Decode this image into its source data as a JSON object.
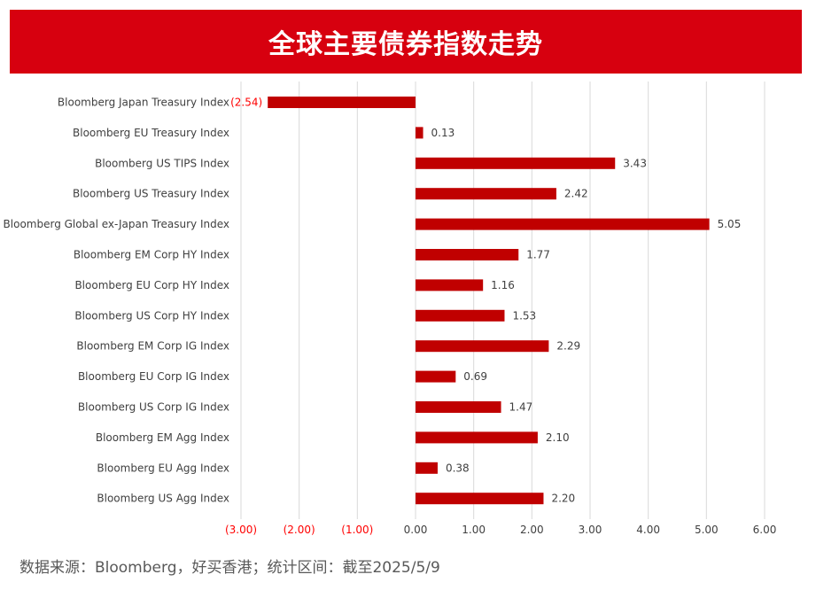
{
  "banner": {
    "title": "全球主要债券指数走势"
  },
  "source": "数据来源：Bloomberg，好买香港；统计区间：截至2025/5/9",
  "colors": {
    "bar": "#c00000",
    "banner": "#d7000f",
    "negative_label": "#ff0000",
    "grid": "#d9d9d9",
    "text": "#404040"
  },
  "chart_data": {
    "type": "bar",
    "orientation": "horizontal",
    "title": "全球主要债券指数走势",
    "categories": [
      "Bloomberg Japan Treasury Index",
      "Bloomberg EU Treasury Index",
      "Bloomberg US TIPS Index",
      "Bloomberg US Treasury Index",
      "Bloomberg Global ex-Japan Treasury Index",
      "Bloomberg EM Corp HY Index",
      "Bloomberg EU Corp HY Index",
      "Bloomberg US Corp HY Index",
      "Bloomberg EM Corp IG Index",
      "Bloomberg EU Corp IG Index",
      "Bloomberg US Corp IG Index",
      "Bloomberg EM Agg Index",
      "Bloomberg EU Agg Index",
      "Bloomberg US Agg Index"
    ],
    "values": [
      -2.54,
      0.13,
      3.43,
      2.42,
      5.05,
      1.77,
      1.16,
      1.53,
      2.29,
      0.69,
      1.47,
      2.1,
      0.38,
      2.2
    ],
    "value_labels": [
      "(2.54)",
      "0.13",
      "3.43",
      "2.42",
      "5.05",
      "1.77",
      "1.16",
      "1.53",
      "2.29",
      "0.69",
      "1.47",
      "2.10",
      "0.38",
      "2.20"
    ],
    "xlim": [
      -3,
      6
    ],
    "xticks": [
      -3,
      -2,
      -1,
      0,
      1,
      2,
      3,
      4,
      5,
      6
    ],
    "xtick_labels": [
      "(3.00)",
      "(2.00)",
      "(1.00)",
      "0.00",
      "1.00",
      "2.00",
      "3.00",
      "4.00",
      "5.00",
      "6.00"
    ],
    "grid": true,
    "legend": "none"
  }
}
